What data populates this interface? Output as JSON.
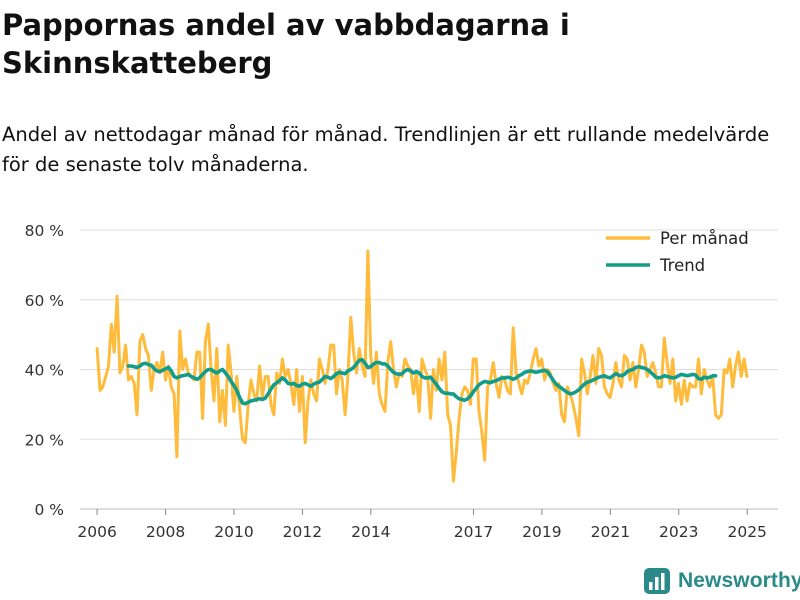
{
  "header": {
    "title": "Pappornas andel av vabbdagarna i Skinnskatteberg",
    "subtitle": "Andel av nettodagar månad för månad. Trendlinjen är ett rullande medelvärde för de senaste tolv månaderna."
  },
  "brand": {
    "name": "Newsworthy"
  },
  "colors": {
    "monthly": "#ffbb3c",
    "trend": "#119c8c",
    "grid": "#dddddd",
    "brand": "#2a8a8a"
  },
  "chart_data": {
    "type": "line",
    "title": "Pappornas andel av vabbdagarna i Skinnskatteberg",
    "xlabel": "",
    "ylabel": "",
    "ylim": [
      0,
      80
    ],
    "xlim": [
      2005.5,
      2025.9
    ],
    "y_ticks": [
      0,
      20,
      40,
      60,
      80
    ],
    "y_tick_labels": [
      "0 %",
      "20 %",
      "40 %",
      "60 %",
      "80 %"
    ],
    "x_ticks": [
      2006,
      2008,
      2010,
      2012,
      2014,
      2017,
      2019,
      2021,
      2023,
      2025
    ],
    "x_tick_labels": [
      "2006",
      "2008",
      "2010",
      "2012",
      "2014",
      "2017",
      "2019",
      "2021",
      "2023",
      "2025"
    ],
    "legend": {
      "position": "top-right",
      "entries": [
        "Per månad",
        "Trend"
      ]
    },
    "series": [
      {
        "name": "Per månad",
        "x_start": 2006.0,
        "x_step": 0.0833,
        "values": [
          46,
          34,
          35,
          38,
          41,
          53,
          45,
          61,
          39,
          41,
          47,
          37,
          38,
          36,
          27,
          48,
          50,
          46,
          44,
          34,
          40,
          42,
          39,
          45,
          37,
          41,
          35,
          33,
          15,
          51,
          40,
          43,
          39,
          38,
          37,
          45,
          45,
          26,
          48,
          53,
          40,
          31,
          46,
          25,
          34,
          24,
          47,
          39,
          28,
          38,
          29,
          20,
          19,
          30,
          37,
          33,
          31,
          41,
          32,
          38,
          38,
          30,
          27,
          39,
          36,
          43,
          38,
          40,
          36,
          30,
          40,
          28,
          38,
          19,
          31,
          37,
          33,
          31,
          43,
          40,
          36,
          40,
          47,
          47,
          33,
          40,
          37,
          27,
          38,
          55,
          45,
          39,
          46,
          41,
          38,
          74,
          44,
          36,
          45,
          33,
          30,
          28,
          42,
          48,
          40,
          35,
          39,
          38,
          43,
          41,
          40,
          33,
          39,
          28,
          43,
          40,
          38,
          26,
          40,
          34,
          43,
          37,
          45,
          27,
          24,
          8,
          16,
          26,
          33,
          35,
          34,
          30,
          43,
          43,
          28,
          22,
          14,
          35,
          37,
          42,
          36,
          32,
          38,
          37,
          34,
          33,
          52,
          39,
          36,
          33,
          37,
          36,
          39,
          43,
          46,
          41,
          43,
          37,
          40,
          39,
          36,
          34,
          36,
          27,
          25,
          35,
          33,
          30,
          26,
          21,
          43,
          39,
          33,
          38,
          44,
          36,
          46,
          44,
          35,
          33,
          32,
          36,
          42,
          37,
          35,
          44,
          43,
          37,
          42,
          35,
          40,
          47,
          45,
          38,
          40,
          42,
          39,
          35,
          35,
          49,
          42,
          36,
          43,
          31,
          36,
          30,
          37,
          31,
          36,
          35,
          35,
          43,
          33,
          40,
          37,
          35,
          38,
          27,
          26,
          27,
          40,
          39,
          43,
          35,
          41,
          45,
          38,
          43,
          38
        ]
      },
      {
        "name": "Trend",
        "x_start": 2006.9167,
        "x_step": 0.0833,
        "values": [
          41,
          41,
          40.8,
          40.6,
          41,
          41.6,
          41.8,
          41.4,
          41.2,
          40.2,
          39.6,
          39.4,
          39.8,
          40.2,
          40.6,
          39.6,
          38,
          37.6,
          38,
          38.2,
          38.4,
          38.6,
          38,
          37.6,
          37.2,
          37.6,
          38.6,
          39.4,
          40,
          40,
          39.4,
          39,
          39.6,
          40,
          39,
          38,
          36.6,
          35.4,
          34,
          32,
          30.4,
          30.2,
          30.6,
          31,
          31.2,
          31.4,
          31.6,
          31.4,
          31.8,
          33,
          34.4,
          35.6,
          36.2,
          36.8,
          37.6,
          37,
          36,
          35.8,
          36,
          35.4,
          35.2,
          35.8,
          36,
          35.6,
          35.2,
          35.8,
          36.2,
          36.4,
          37.2,
          38,
          37.8,
          37.4,
          38,
          38.8,
          39.2,
          39,
          38.8,
          39.6,
          40,
          40.6,
          41.6,
          42.6,
          42.8,
          41.8,
          40.6,
          40.8,
          41.6,
          42,
          42,
          41.6,
          41.6,
          41,
          40,
          39.2,
          38.8,
          38.6,
          38.8,
          39.6,
          40,
          39.6,
          39,
          39.4,
          39,
          38,
          37.6,
          37.6,
          37.8,
          36.8,
          35.8,
          34.6,
          33.6,
          33.2,
          33.2,
          33,
          33,
          32.2,
          31.6,
          31.4,
          31.2,
          31.6,
          32.4,
          33.6,
          34.6,
          35.6,
          36.2,
          36.6,
          36.4,
          36.2,
          36.6,
          36.8,
          37.2,
          37.6,
          37.6,
          37.8,
          37.6,
          37.2,
          37.6,
          38.2,
          38.6,
          39.2,
          39.4,
          39.6,
          39.4,
          39.2,
          39.4,
          39.6,
          39.8,
          39.4,
          38.2,
          37,
          35.8,
          35.2,
          34.6,
          34,
          33.4,
          33,
          33.2,
          33.6,
          34.2,
          35,
          35.8,
          36.4,
          36.6,
          37,
          37.4,
          37.8,
          38,
          38.2,
          37.8,
          37.6,
          38.2,
          38.8,
          38.4,
          38.2,
          38.6,
          39.4,
          39.8,
          40,
          40.6,
          40.8,
          40.6,
          40.4,
          40,
          39.4,
          38.6,
          37.8,
          37.6,
          37.8,
          38.2,
          38,
          37.8,
          37.6,
          37.8,
          38.2,
          38.6,
          38.4,
          38.2,
          38.4,
          38.6,
          38.4,
          37.4,
          37.2,
          37.8,
          37.6,
          37.8,
          38.2,
          38.2
        ]
      }
    ]
  }
}
